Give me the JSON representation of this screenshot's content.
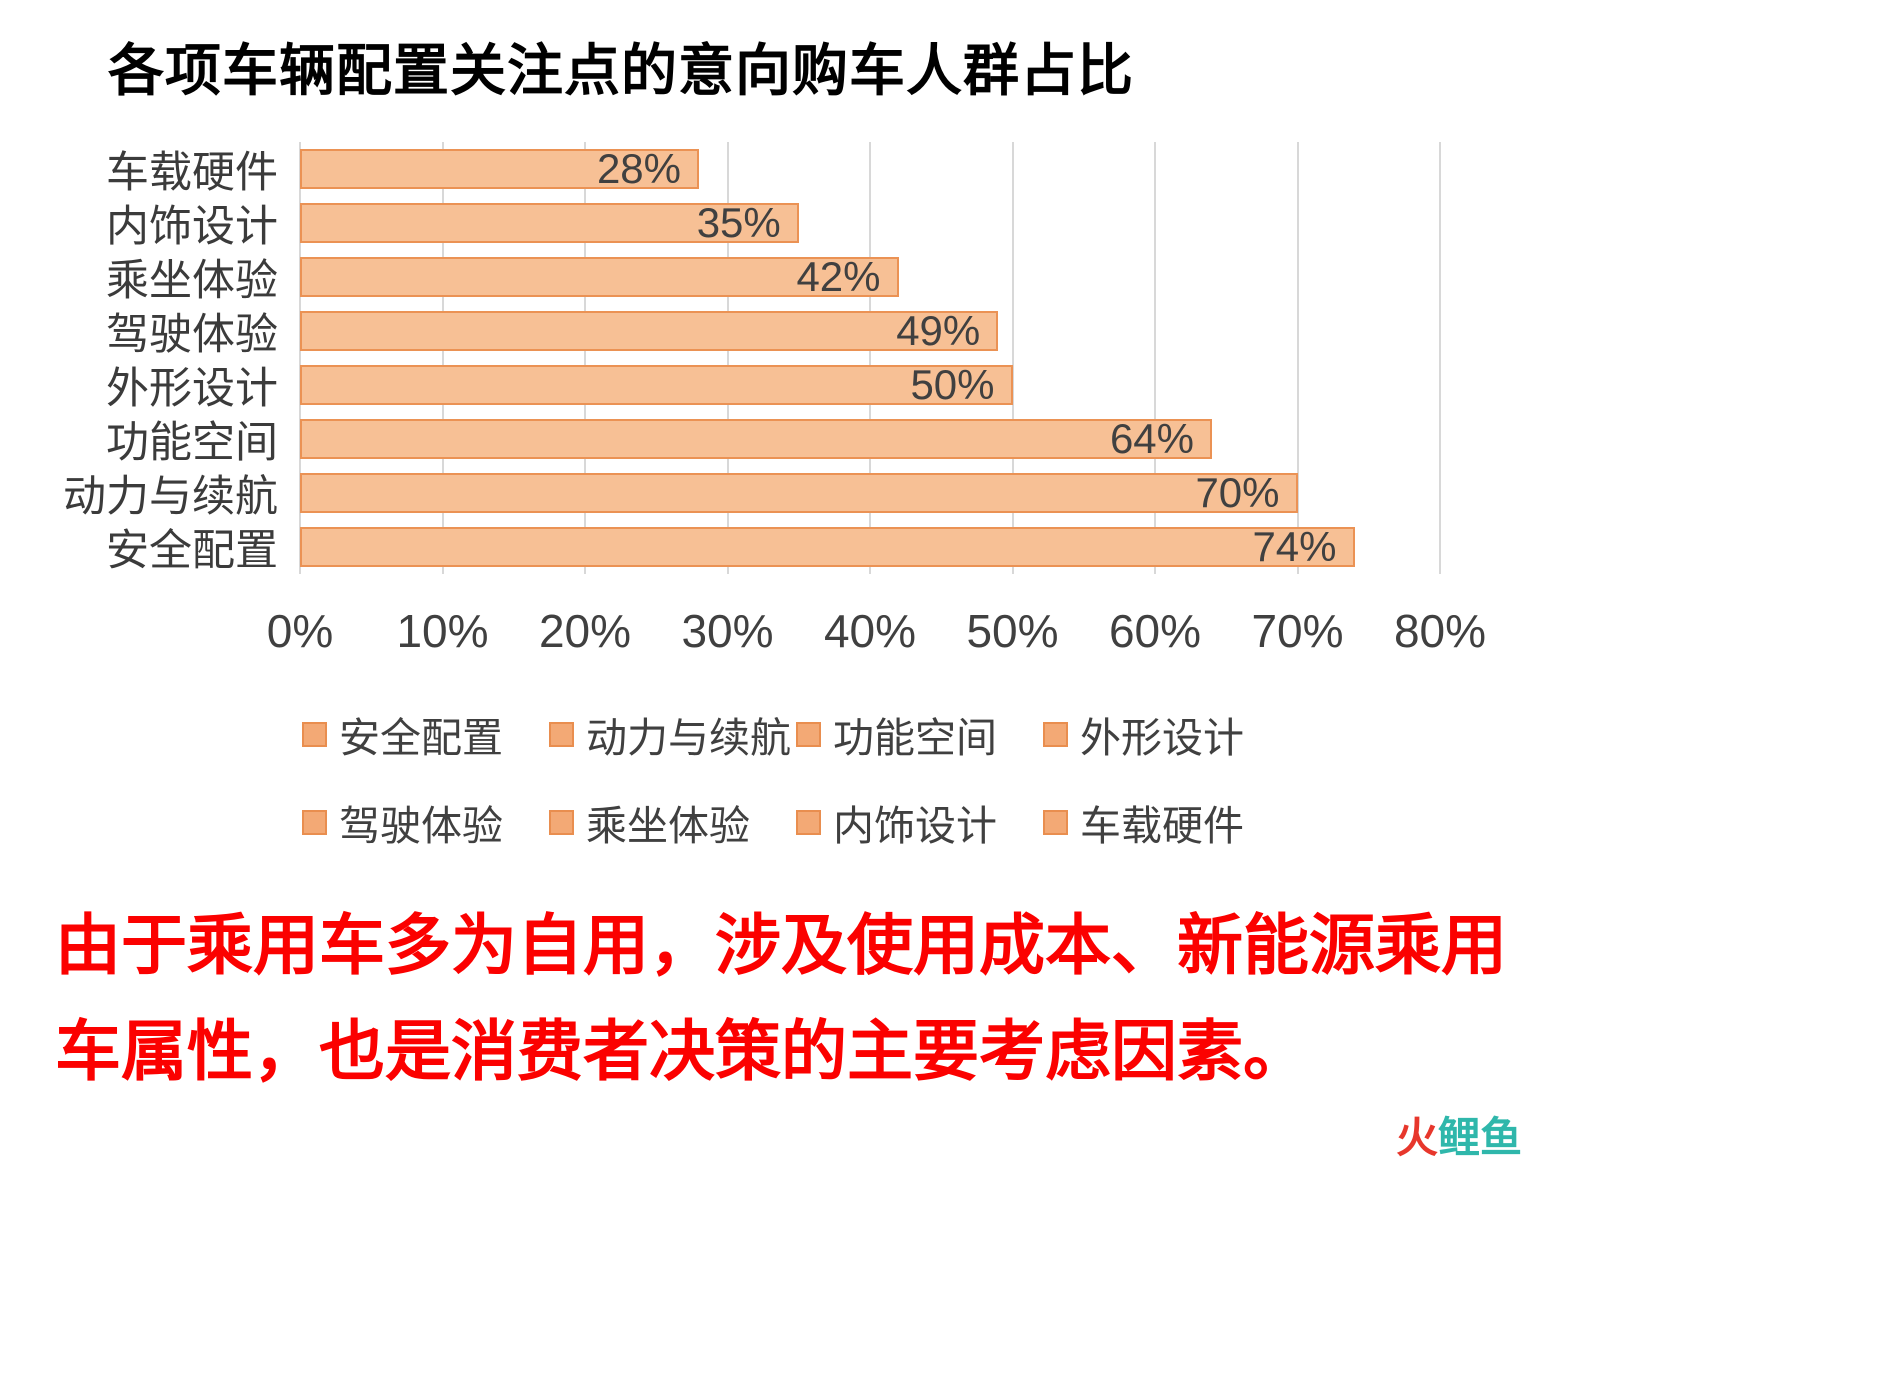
{
  "title": "各项车辆配置关注点的意向购车人群占比",
  "chart_data": {
    "type": "bar",
    "orientation": "horizontal",
    "title": "各项车辆配置关注点的意向购车人群占比",
    "categories": [
      "车载硬件",
      "内饰设计",
      "乘坐体验",
      "驾驶体验",
      "外形设计",
      "功能空间",
      "动力与续航",
      "安全配置"
    ],
    "values": [
      28,
      35,
      42,
      49,
      50,
      64,
      70,
      74
    ],
    "value_labels": [
      "28%",
      "35%",
      "42%",
      "49%",
      "50%",
      "64%",
      "70%",
      "74%"
    ],
    "xlabel": "",
    "ylabel": "",
    "xlim": [
      0,
      80
    ],
    "x_ticks": [
      "0%",
      "10%",
      "20%",
      "30%",
      "40%",
      "50%",
      "60%",
      "70%",
      "80%"
    ],
    "grid": true,
    "legend_position": "bottom",
    "legend": [
      "安全配置",
      "动力与续航",
      "功能空间",
      "外形设计",
      "驾驶体验",
      "乘坐体验",
      "内饰设计",
      "车载硬件"
    ],
    "bar_fill": "#f7c095",
    "bar_border": "#eb9254",
    "legend_swatch_fill": "#f3a975",
    "legend_swatch_border": "#e98e4f"
  },
  "caption": "由于乘用车多为自用，涉及使用成本、新能源乘用车属性，也是消费者决策的主要考虑因素。",
  "caption_color": "#fb0100",
  "watermark": {
    "fire": "火",
    "fish": "鲤鱼"
  }
}
